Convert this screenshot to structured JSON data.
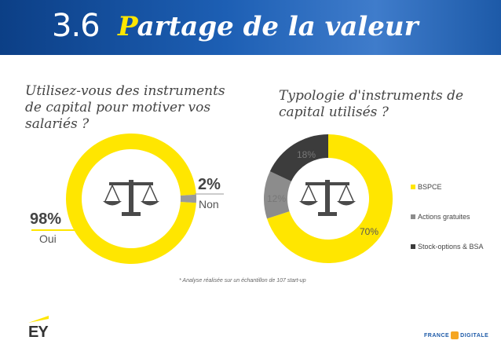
{
  "header": {
    "number": "3.6",
    "title_first": "P",
    "title_rest": "artage de la valeur"
  },
  "questions": {
    "q1": "Utilisez-vous des instruments de capital pour motiver vos salariés ?",
    "q2": "Typologie d'instruments de capital utilisés ?"
  },
  "chart_data": [
    {
      "type": "pie",
      "variant": "donut",
      "title": "Utilisez-vous des instruments de capital pour motiver vos salariés ?",
      "categories": [
        "Oui",
        "Non"
      ],
      "values": [
        98,
        2
      ],
      "value_labels": [
        "98%",
        "2%"
      ],
      "colors": [
        "#ffe600",
        "#9a9a9a"
      ]
    },
    {
      "type": "pie",
      "variant": "donut",
      "title": "Typologie d'instruments de capital utilisés ?",
      "categories": [
        "BSPCE",
        "Actions gratuites",
        "Stock-options & BSA"
      ],
      "values": [
        70,
        12,
        18
      ],
      "value_labels": [
        "70%",
        "12%",
        "18%"
      ],
      "colors": [
        "#ffe600",
        "#8c8c8c",
        "#3c3c3c"
      ],
      "legend_position": "right"
    }
  ],
  "footnote": "* Analyse réalisée sur un échantillon de 107 start-up",
  "logos": {
    "ey": "EY",
    "fd_left": "FRANCE",
    "fd_right": "DIGITALE"
  },
  "colors": {
    "accent": "#ffe600",
    "header": "#1d5fb4",
    "icon": "#4a4a4a"
  }
}
